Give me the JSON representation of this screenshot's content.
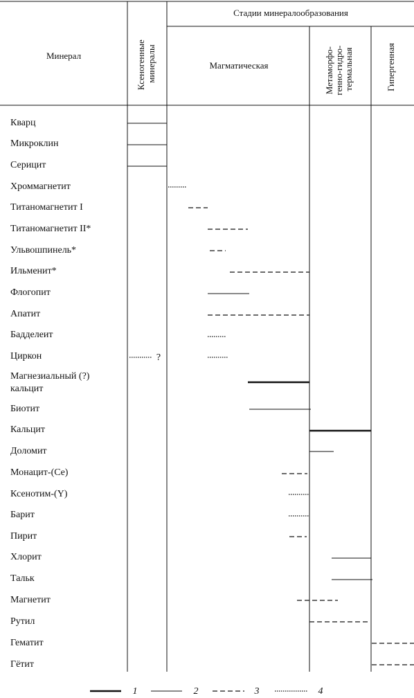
{
  "header": {
    "mineral": "Минерал",
    "xenogenic": [
      "Ксеногенные",
      "минералы"
    ],
    "stages_title": "Стадии минералообразования",
    "stages": [
      {
        "lines": [
          "Магматическая"
        ]
      },
      {
        "lines": [
          "Метаморфо-",
          "генно-гидро-",
          "термальная"
        ]
      },
      {
        "lines": [
          "Гипергенная"
        ]
      }
    ]
  },
  "minerals": [
    {
      "lines": [
        "Кварц"
      ]
    },
    {
      "lines": [
        "Микроклин"
      ]
    },
    {
      "lines": [
        "Серицит"
      ]
    },
    {
      "lines": [
        "Хроммагнетит"
      ]
    },
    {
      "lines": [
        "Титаномагнетит I"
      ]
    },
    {
      "lines": [
        "Титаномагнетит II*"
      ]
    },
    {
      "lines": [
        "Ульвошпинель*"
      ]
    },
    {
      "lines": [
        "Ильменит*"
      ]
    },
    {
      "lines": [
        "Флогопит"
      ]
    },
    {
      "lines": [
        "Апатит"
      ]
    },
    {
      "lines": [
        "Бадделеит"
      ]
    },
    {
      "lines": [
        "Циркон"
      ]
    },
    {
      "lines": [
        "Магнезиальный (?)",
        "кальцит"
      ]
    },
    {
      "lines": [
        "Биотит"
      ]
    },
    {
      "lines": [
        "Кальцит"
      ]
    },
    {
      "lines": [
        "Доломит"
      ]
    },
    {
      "lines": [
        "Монацит-(Ce)"
      ]
    },
    {
      "lines": [
        "Ксенотим-(Y)"
      ]
    },
    {
      "lines": [
        "Барит"
      ]
    },
    {
      "lines": [
        "Пирит"
      ]
    },
    {
      "lines": [
        "Хлорит"
      ]
    },
    {
      "lines": [
        "Тальк"
      ]
    },
    {
      "lines": [
        "Магнетит"
      ]
    },
    {
      "lines": [
        "Рутил"
      ]
    },
    {
      "lines": [
        "Гематит"
      ]
    },
    {
      "lines": [
        "Гётит"
      ]
    }
  ],
  "annotation": "?",
  "legend": [
    "1",
    "2",
    "3",
    "4"
  ]
}
